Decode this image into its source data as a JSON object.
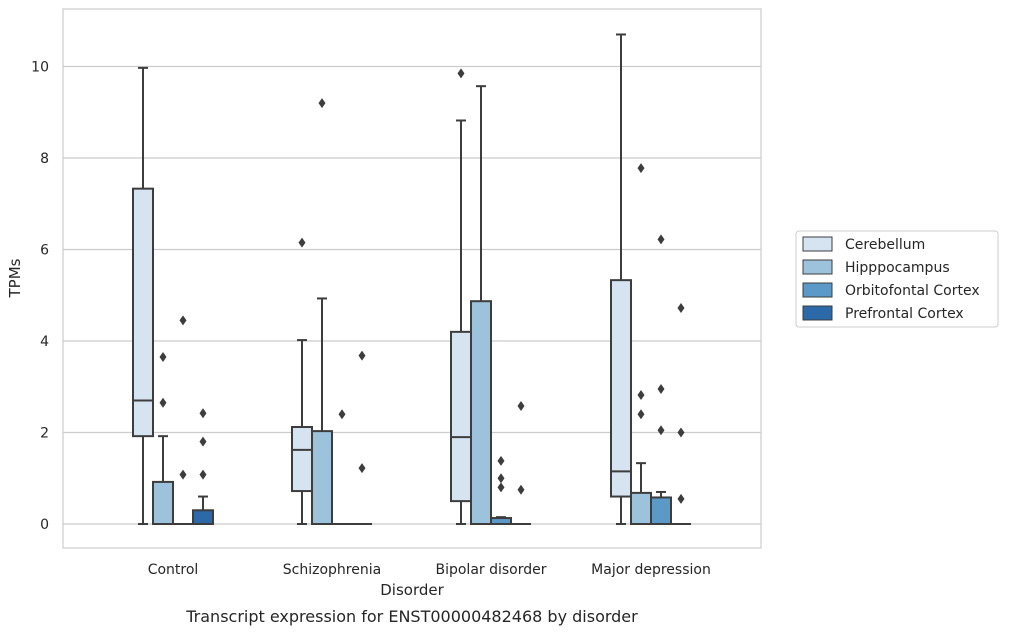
{
  "chart_data": {
    "type": "box",
    "title": "",
    "caption": "Transcript expression for ENST00000482468 by disorder",
    "xlabel": "Disorder",
    "ylabel": "TPMs",
    "ylim": [
      -0.5,
      11.25
    ],
    "yticks": [
      0,
      2,
      4,
      6,
      8,
      10
    ],
    "grid": "horizontal",
    "legend_position": "right",
    "categories": [
      "Control",
      "Schizophrenia",
      "Bipolar disorder",
      "Major depression"
    ],
    "series": [
      {
        "name": "Cerebellum",
        "color": "#d6e4f1",
        "boxes": [
          {
            "whisker_low": 0,
            "q1": 1.92,
            "median": 2.7,
            "q3": 7.33,
            "whisker_high": 9.97,
            "outliers": []
          },
          {
            "whisker_low": 0,
            "q1": 0.72,
            "median": 1.62,
            "q3": 2.12,
            "whisker_high": 4.02,
            "outliers": [
              6.15
            ]
          },
          {
            "whisker_low": 0,
            "q1": 0.5,
            "median": 1.9,
            "q3": 4.2,
            "whisker_high": 8.82,
            "outliers": [
              9.85
            ]
          },
          {
            "whisker_low": 0,
            "q1": 0.6,
            "median": 1.15,
            "q3": 5.33,
            "whisker_high": 10.7,
            "outliers": []
          }
        ]
      },
      {
        "name": "Hipppocampus",
        "color": "#9dc3dc",
        "boxes": [
          {
            "whisker_low": 0,
            "q1": 0,
            "median": 0,
            "q3": 0.92,
            "whisker_high": 1.92,
            "outliers": [
              2.65,
              3.65
            ]
          },
          {
            "whisker_low": 0,
            "q1": 0,
            "median": 0,
            "q3": 2.03,
            "whisker_high": 4.93,
            "outliers": [
              9.2
            ]
          },
          {
            "whisker_low": 0,
            "q1": 0,
            "median": 0,
            "q3": 4.87,
            "whisker_high": 9.57,
            "outliers": []
          },
          {
            "whisker_low": 0,
            "q1": 0,
            "median": 0,
            "q3": 0.68,
            "whisker_high": 1.33,
            "outliers": [
              2.4,
              2.82,
              7.78
            ]
          }
        ]
      },
      {
        "name": "Orbitofontal Cortex",
        "color": "#5b99c8",
        "boxes": [
          {
            "whisker_low": 0,
            "q1": 0,
            "median": 0,
            "q3": 0,
            "whisker_high": 0,
            "outliers": [
              1.08,
              4.45
            ]
          },
          {
            "whisker_low": 0,
            "q1": 0,
            "median": 0,
            "q3": 0,
            "whisker_high": 0,
            "outliers": [
              2.4
            ]
          },
          {
            "whisker_low": 0,
            "q1": 0,
            "median": 0,
            "q3": 0.13,
            "whisker_high": 0.15,
            "outliers": [
              0.8,
              1.0,
              1.38
            ]
          },
          {
            "whisker_low": 0,
            "q1": 0,
            "median": 0,
            "q3": 0.58,
            "whisker_high": 0.7,
            "outliers": [
              2.05,
              2.95,
              6.22
            ]
          }
        ]
      },
      {
        "name": "Prefrontal Cortex",
        "color": "#2c69a9",
        "boxes": [
          {
            "whisker_low": 0,
            "q1": 0,
            "median": 0,
            "q3": 0.3,
            "whisker_high": 0.6,
            "outliers": [
              1.08,
              1.8,
              2.42
            ]
          },
          {
            "whisker_low": 0,
            "q1": 0,
            "median": 0,
            "q3": 0,
            "whisker_high": 0,
            "outliers": [
              1.22,
              3.68
            ]
          },
          {
            "whisker_low": 0,
            "q1": 0,
            "median": 0,
            "q3": 0,
            "whisker_high": 0,
            "outliers": [
              0.75,
              2.58
            ]
          },
          {
            "whisker_low": 0,
            "q1": 0,
            "median": 0,
            "q3": 0,
            "whisker_high": 0,
            "outliers": [
              0.55,
              2.0,
              4.72
            ]
          }
        ]
      }
    ]
  }
}
